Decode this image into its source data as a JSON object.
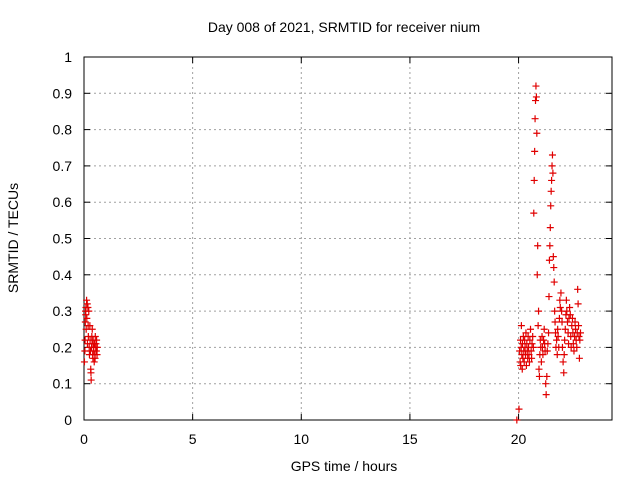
{
  "chart_data": {
    "type": "scatter",
    "title": "Day 008 of 2021, SRMTID for receiver nium",
    "xlabel": "GPS time / hours",
    "ylabel": "SRMTID / TECUs",
    "xlim": [
      0,
      24.3
    ],
    "ylim": [
      0,
      1
    ],
    "x_ticks": [
      0,
      5,
      10,
      15,
      20
    ],
    "y_ticks": [
      0,
      0.1,
      0.2,
      0.3,
      0.4,
      0.5,
      0.6,
      0.7,
      0.8,
      0.9,
      1
    ],
    "x_tick_labels": [
      "0",
      "5",
      "10",
      "15",
      "20"
    ],
    "y_tick_labels": [
      "0",
      "0.1",
      "0.2",
      "0.3",
      "0.4",
      "0.5",
      "0.6",
      "0.7",
      "0.8",
      "0.9",
      "1"
    ],
    "grid": true,
    "marker": "+",
    "marker_color": "#e00000",
    "series": [
      {
        "name": "SRMTID",
        "points": [
          [
            0.02,
            0.16
          ],
          [
            0.04,
            0.19
          ],
          [
            0.05,
            0.22
          ],
          [
            0.06,
            0.27
          ],
          [
            0.07,
            0.3
          ],
          [
            0.08,
            0.29
          ],
          [
            0.09,
            0.31
          ],
          [
            0.1,
            0.25
          ],
          [
            0.12,
            0.33
          ],
          [
            0.13,
            0.28
          ],
          [
            0.15,
            0.32
          ],
          [
            0.16,
            0.21
          ],
          [
            0.18,
            0.31
          ],
          [
            0.19,
            0.26
          ],
          [
            0.2,
            0.23
          ],
          [
            0.22,
            0.3
          ],
          [
            0.24,
            0.2
          ],
          [
            0.25,
            0.18
          ],
          [
            0.27,
            0.26
          ],
          [
            0.28,
            0.22
          ],
          [
            0.3,
            0.19
          ],
          [
            0.31,
            0.14
          ],
          [
            0.32,
            0.13
          ],
          [
            0.33,
            0.11
          ],
          [
            0.35,
            0.2
          ],
          [
            0.36,
            0.23
          ],
          [
            0.37,
            0.21
          ],
          [
            0.38,
            0.25
          ],
          [
            0.4,
            0.18
          ],
          [
            0.41,
            0.17
          ],
          [
            0.42,
            0.22
          ],
          [
            0.44,
            0.2
          ],
          [
            0.45,
            0.19
          ],
          [
            0.47,
            0.16
          ],
          [
            0.48,
            0.21
          ],
          [
            0.5,
            0.18
          ],
          [
            0.51,
            0.17
          ],
          [
            0.52,
            0.23
          ],
          [
            0.54,
            0.2
          ],
          [
            0.55,
            0.21
          ],
          [
            0.57,
            0.19
          ],
          [
            0.58,
            0.22
          ],
          [
            0.6,
            0.18
          ],
          [
            0.61,
            0.2
          ],
          [
            19.92,
            0.0
          ],
          [
            20.02,
            0.03
          ],
          [
            20.05,
            0.19
          ],
          [
            20.07,
            0.16
          ],
          [
            20.09,
            0.22
          ],
          [
            20.1,
            0.15
          ],
          [
            20.12,
            0.2
          ],
          [
            20.13,
            0.26
          ],
          [
            20.15,
            0.18
          ],
          [
            20.17,
            0.14
          ],
          [
            20.18,
            0.21
          ],
          [
            20.2,
            0.17
          ],
          [
            20.22,
            0.23
          ],
          [
            20.24,
            0.19
          ],
          [
            20.26,
            0.16
          ],
          [
            20.28,
            0.22
          ],
          [
            20.3,
            0.2
          ],
          [
            20.32,
            0.18
          ],
          [
            20.34,
            0.24
          ],
          [
            20.36,
            0.15
          ],
          [
            20.38,
            0.21
          ],
          [
            20.4,
            0.19
          ],
          [
            20.42,
            0.17
          ],
          [
            20.44,
            0.23
          ],
          [
            20.46,
            0.2
          ],
          [
            20.48,
            0.18
          ],
          [
            20.5,
            0.16
          ],
          [
            20.52,
            0.22
          ],
          [
            20.55,
            0.25
          ],
          [
            20.58,
            0.19
          ],
          [
            20.6,
            0.17
          ],
          [
            20.62,
            0.21
          ],
          [
            20.65,
            0.23
          ],
          [
            20.68,
            0.2
          ],
          [
            20.7,
            0.57
          ],
          [
            20.72,
            0.66
          ],
          [
            20.74,
            0.74
          ],
          [
            20.76,
            0.83
          ],
          [
            20.78,
            0.88
          ],
          [
            20.8,
            0.92
          ],
          [
            20.82,
            0.89
          ],
          [
            20.84,
            0.79
          ],
          [
            20.86,
            0.4
          ],
          [
            20.88,
            0.48
          ],
          [
            20.9,
            0.26
          ],
          [
            20.92,
            0.3
          ],
          [
            20.94,
            0.14
          ],
          [
            20.96,
            0.12
          ],
          [
            20.98,
            0.18
          ],
          [
            21.0,
            0.22
          ],
          [
            21.02,
            0.2
          ],
          [
            21.05,
            0.16
          ],
          [
            21.08,
            0.23
          ],
          [
            21.1,
            0.2
          ],
          [
            21.12,
            0.18
          ],
          [
            21.15,
            0.22
          ],
          [
            21.18,
            0.25
          ],
          [
            21.2,
            0.21
          ],
          [
            21.22,
            0.19
          ],
          [
            21.25,
            0.1
          ],
          [
            21.27,
            0.07
          ],
          [
            21.3,
            0.12
          ],
          [
            21.32,
            0.19
          ],
          [
            21.35,
            0.21
          ],
          [
            21.38,
            0.24
          ],
          [
            21.4,
            0.34
          ],
          [
            21.42,
            0.44
          ],
          [
            21.44,
            0.48
          ],
          [
            21.46,
            0.53
          ],
          [
            21.48,
            0.59
          ],
          [
            21.5,
            0.63
          ],
          [
            21.52,
            0.66
          ],
          [
            21.54,
            0.7
          ],
          [
            21.56,
            0.73
          ],
          [
            21.58,
            0.68
          ],
          [
            21.6,
            0.45
          ],
          [
            21.62,
            0.42
          ],
          [
            21.64,
            0.38
          ],
          [
            21.66,
            0.3
          ],
          [
            21.68,
            0.27
          ],
          [
            21.7,
            0.24
          ],
          [
            21.72,
            0.2
          ],
          [
            21.75,
            0.22
          ],
          [
            21.78,
            0.18
          ],
          [
            21.8,
            0.25
          ],
          [
            21.82,
            0.23
          ],
          [
            21.85,
            0.2
          ],
          [
            21.88,
            0.28
          ],
          [
            21.9,
            0.33
          ],
          [
            21.92,
            0.31
          ],
          [
            21.95,
            0.35
          ],
          [
            21.98,
            0.3
          ],
          [
            22.0,
            0.27
          ],
          [
            22.02,
            0.2
          ],
          [
            22.05,
            0.16
          ],
          [
            22.08,
            0.13
          ],
          [
            22.1,
            0.18
          ],
          [
            22.12,
            0.22
          ],
          [
            22.15,
            0.25
          ],
          [
            22.18,
            0.29
          ],
          [
            22.2,
            0.33
          ],
          [
            22.22,
            0.3
          ],
          [
            22.25,
            0.27
          ],
          [
            22.28,
            0.24
          ],
          [
            22.3,
            0.21
          ],
          [
            22.32,
            0.28
          ],
          [
            22.35,
            0.31
          ],
          [
            22.38,
            0.29
          ],
          [
            22.4,
            0.23
          ],
          [
            22.42,
            0.2
          ],
          [
            22.45,
            0.26
          ],
          [
            22.48,
            0.28
          ],
          [
            22.5,
            0.24
          ],
          [
            22.52,
            0.21
          ],
          [
            22.55,
            0.19
          ],
          [
            22.58,
            0.23
          ],
          [
            22.6,
            0.27
          ],
          [
            22.62,
            0.25
          ],
          [
            22.65,
            0.22
          ],
          [
            22.68,
            0.2
          ],
          [
            22.7,
            0.24
          ],
          [
            22.72,
            0.36
          ],
          [
            22.74,
            0.32
          ],
          [
            22.76,
            0.26
          ],
          [
            22.78,
            0.23
          ],
          [
            22.8,
            0.17
          ],
          [
            22.82,
            0.22
          ],
          [
            22.85,
            0.24
          ]
        ]
      }
    ]
  }
}
